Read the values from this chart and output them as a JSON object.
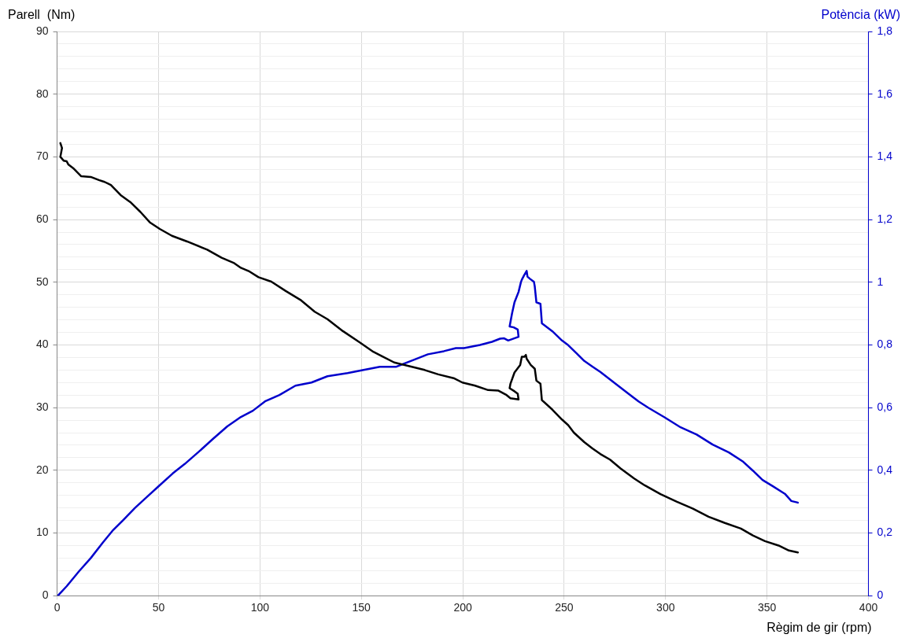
{
  "chart_data": {
    "type": "line",
    "xlabel": "Règim de gir (rpm)",
    "ylabel": "Parell  (Nm)",
    "y2label": "Potència (kW)",
    "xlim": [
      0,
      400
    ],
    "xticks": [
      0,
      50,
      100,
      150,
      200,
      250,
      300,
      350,
      400
    ],
    "ylim": [
      0,
      90
    ],
    "yticks": [
      0,
      {
        "value": 2,
        "label": null
      },
      {
        "value": 4,
        "label": null
      },
      {
        "value": 6,
        "label": null
      },
      {
        "value": 8,
        "label": null
      },
      10,
      {
        "value": 12,
        "label": null
      },
      {
        "value": 14,
        "label": null
      },
      {
        "value": 16,
        "label": null
      },
      {
        "value": 18,
        "label": null
      },
      20,
      {
        "value": 22,
        "label": null
      },
      {
        "value": 24,
        "label": null
      },
      {
        "value": 26,
        "label": null
      },
      {
        "value": 28,
        "label": null
      },
      30,
      {
        "value": 32,
        "label": null
      },
      {
        "value": 34,
        "label": null
      },
      {
        "value": 36,
        "label": null
      },
      {
        "value": 38,
        "label": null
      },
      40,
      {
        "value": 42,
        "label": null
      },
      {
        "value": 44,
        "label": null
      },
      {
        "value": 46,
        "label": null
      },
      {
        "value": 48,
        "label": null
      },
      50,
      {
        "value": 52,
        "label": null
      },
      {
        "value": 54,
        "label": null
      },
      {
        "value": 56,
        "label": null
      },
      {
        "value": 58,
        "label": null
      },
      60,
      {
        "value": 62,
        "label": null
      },
      {
        "value": 64,
        "label": null
      },
      {
        "value": 66,
        "label": null
      },
      {
        "value": 68,
        "label": null
      },
      70,
      {
        "value": 72,
        "label": null
      },
      {
        "value": 74,
        "label": null
      },
      {
        "value": 76,
        "label": null
      },
      {
        "value": 78,
        "label": null
      },
      80,
      {
        "value": 82,
        "label": null
      },
      {
        "value": 84,
        "label": null
      },
      {
        "value": 86,
        "label": null
      },
      {
        "value": 88,
        "label": null
      },
      90
    ],
    "y2lim": [
      0,
      1.8
    ],
    "y2ticks": [
      0,
      {
        "value": 0.2,
        "label": "0,2"
      },
      {
        "value": 0.4,
        "label": "0,4"
      },
      {
        "value": 0.6,
        "label": "0,6"
      },
      {
        "value": 0.8,
        "label": "0,8"
      },
      1,
      {
        "value": 1.2,
        "label": "1,2"
      },
      {
        "value": 1.4,
        "label": "1,4"
      },
      {
        "value": 1.6,
        "label": "1,6"
      },
      {
        "value": 1.8,
        "label": "1,8"
      }
    ],
    "grid": true,
    "legend": false,
    "marker": "none",
    "line_style": "solid",
    "series": [
      {
        "color": "#000000",
        "axis": "y",
        "x": [
          1.6,
          2.4,
          1.6,
          3.2,
          4.7,
          5.5,
          7.9,
          11.9,
          16.6,
          20.6,
          23.4,
          26.5,
          31.3,
          36.4,
          41.1,
          45.9,
          50.6,
          56.6,
          64.1,
          74,
          81.1,
          87,
          90.6,
          94.9,
          99.3,
          105.6,
          112.7,
          119.9,
          127,
          133.3,
          140.9,
          149.2,
          155.9,
          160.2,
          166.2,
          173.7,
          181.2,
          187.9,
          195.5,
          199.8,
          206.1,
          212.5,
          217.6,
          221.6,
          223.5,
          227.5,
          227.1,
          225.5,
          223.1,
          223.5,
          225.5,
          228.3,
          229.1,
          230.3,
          231.1,
          231.5,
          233.5,
          235.5,
          236.3,
          238.3,
          239,
          244.1,
          248.9,
          252,
          254.8,
          259.9,
          263.9,
          267.8,
          272.6,
          277.8,
          284.5,
          289.7,
          297.5,
          305.4,
          313.3,
          321.2,
          329.2,
          337.1,
          343,
          349,
          355.7,
          360.8,
          365.2
        ],
        "values": [
          72.2,
          71.4,
          70,
          69.4,
          69.3,
          68.8,
          68.2,
          66.9,
          66.8,
          66.3,
          66,
          65.5,
          63.9,
          62.7,
          61.2,
          59.5,
          58.5,
          57.4,
          56.5,
          55.2,
          53.9,
          53.1,
          52.3,
          51.7,
          50.8,
          50.1,
          48.6,
          47.2,
          45.3,
          44.1,
          42.2,
          40.4,
          38.9,
          38.2,
          37.2,
          36.6,
          36,
          35.3,
          34.7,
          34,
          33.5,
          32.8,
          32.7,
          32,
          31.5,
          31.3,
          32.2,
          32.6,
          33.1,
          33.8,
          35.6,
          36.8,
          38.1,
          38.1,
          38.4,
          37.8,
          36.8,
          36.2,
          34.3,
          33.8,
          31.2,
          29.7,
          28.1,
          27.2,
          26,
          24.5,
          23.5,
          22.6,
          21.7,
          20.3,
          18.7,
          17.6,
          16.2,
          15,
          13.9,
          12.6,
          11.6,
          10.7,
          9.6,
          8.7,
          8,
          7.2,
          6.9
        ]
      },
      {
        "color": "#0000cc",
        "axis": "y2",
        "x": [
          0.4,
          4.7,
          10.7,
          16.6,
          22.6,
          27.7,
          32.4,
          38.4,
          44.3,
          50.2,
          57,
          62.9,
          70,
          76.8,
          83.9,
          90.6,
          96.5,
          102.5,
          109.6,
          117.5,
          125.4,
          133.3,
          143.2,
          151.1,
          159.1,
          167,
          174.9,
          182.8,
          190.7,
          196.6,
          200.6,
          208.5,
          214.4,
          218.4,
          220.4,
          222.4,
          227.5,
          227.1,
          225.1,
          223.1,
          224.3,
          225.5,
          227.5,
          228.7,
          229.1,
          230.3,
          231.5,
          231.9,
          233.1,
          235.1,
          235.5,
          236.3,
          238.3,
          239,
          244.1,
          248.9,
          252,
          256,
          259.9,
          263.9,
          267.8,
          271.8,
          275.8,
          281.7,
          286.8,
          291.6,
          299.5,
          307.4,
          315.3,
          323.2,
          331.2,
          338.3,
          343,
          347.8,
          352.9,
          358.8,
          362,
          365.2
        ],
        "values": [
          0,
          0.03,
          0.077,
          0.12,
          0.17,
          0.21,
          0.24,
          0.28,
          0.315,
          0.35,
          0.39,
          0.42,
          0.46,
          0.5,
          0.54,
          0.57,
          0.59,
          0.62,
          0.64,
          0.67,
          0.68,
          0.7,
          0.71,
          0.72,
          0.73,
          0.73,
          0.75,
          0.77,
          0.78,
          0.79,
          0.79,
          0.8,
          0.81,
          0.82,
          0.821,
          0.814,
          0.826,
          0.849,
          0.856,
          0.859,
          0.901,
          0.936,
          0.969,
          1.001,
          1.008,
          1.023,
          1.036,
          1.018,
          1.011,
          1.001,
          0.986,
          0.936,
          0.931,
          0.869,
          0.844,
          0.814,
          0.799,
          0.774,
          0.749,
          0.731,
          0.714,
          0.694,
          0.674,
          0.644,
          0.619,
          0.599,
          0.569,
          0.537,
          0.514,
          0.482,
          0.457,
          0.427,
          0.399,
          0.369,
          0.349,
          0.325,
          0.302,
          0.297
        ]
      }
    ]
  }
}
